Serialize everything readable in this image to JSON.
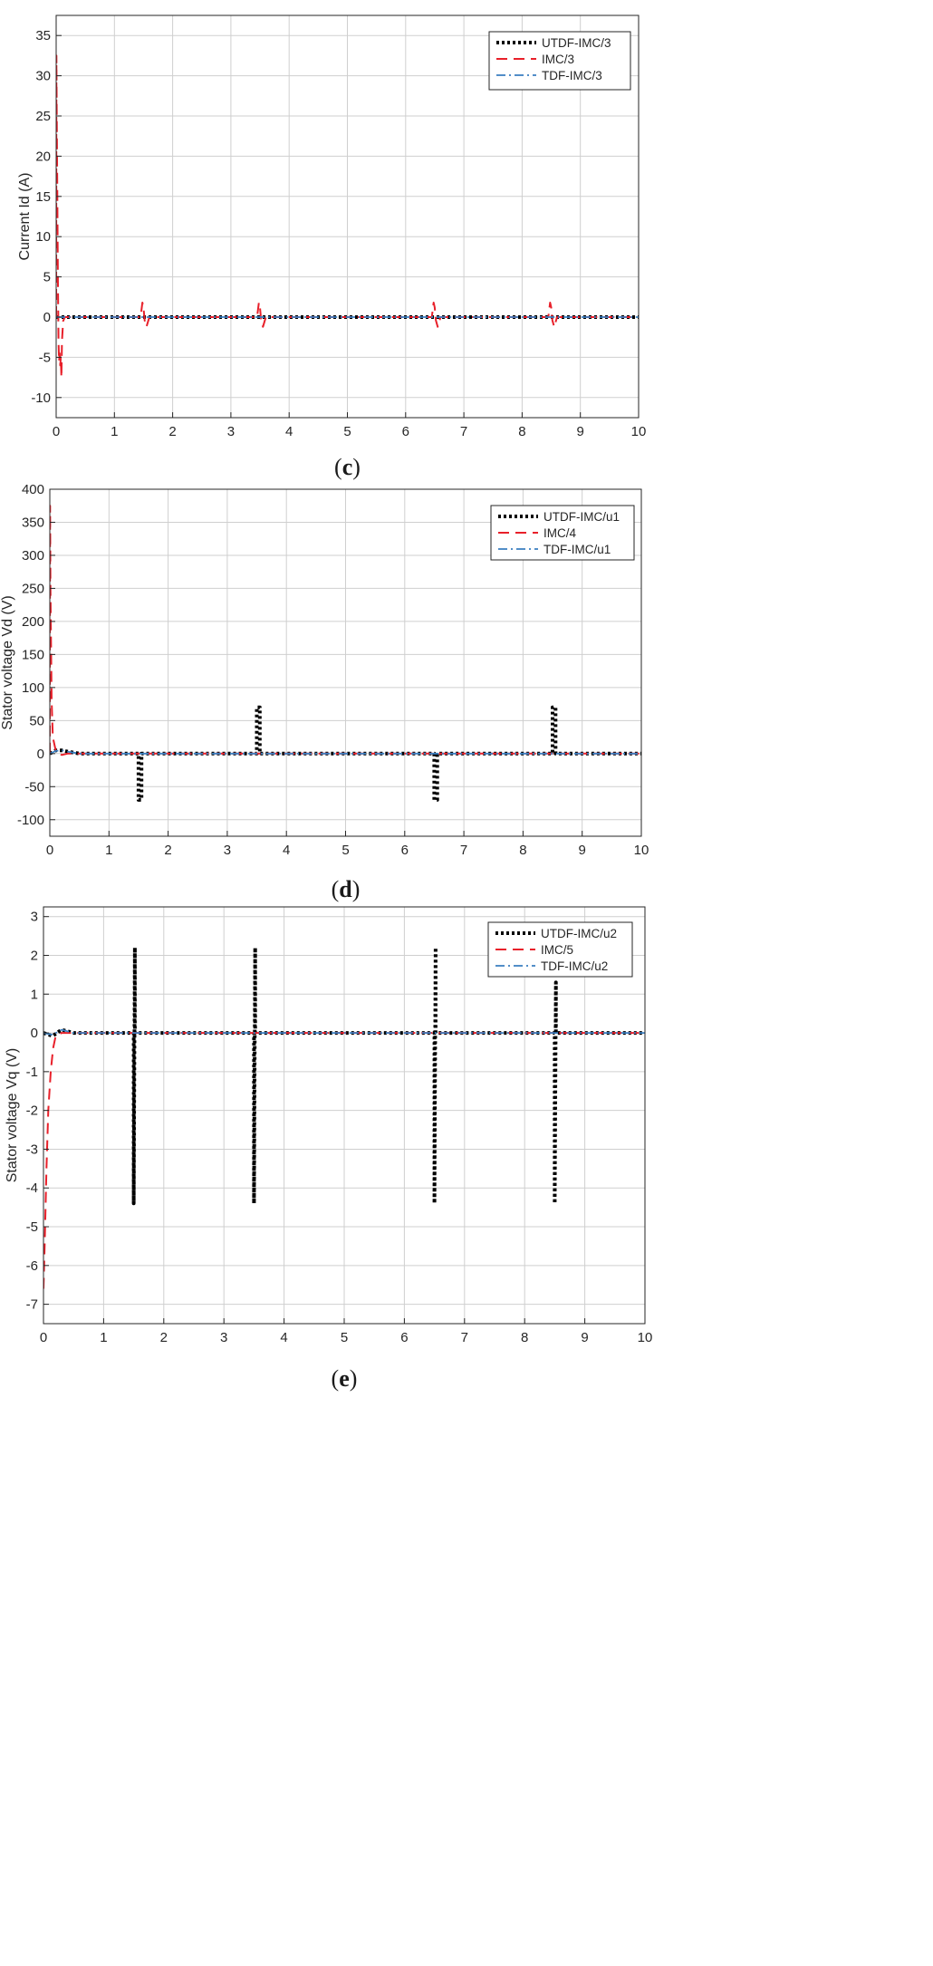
{
  "chart_data": [
    {
      "type": "line",
      "panel_label": "c",
      "xlabel": "",
      "ylabel": "Current Id (A)",
      "xlim": [
        0,
        10
      ],
      "ylim": [
        -12.5,
        37.5
      ],
      "xticks": [
        0,
        1,
        2,
        3,
        4,
        5,
        6,
        7,
        8,
        9,
        10
      ],
      "yticks": [
        35,
        30,
        25,
        20,
        15,
        10,
        5,
        0,
        -5,
        -10
      ],
      "grid": true,
      "legend": "top-right",
      "series": [
        {
          "name": "UTDF-IMC/3",
          "color": "#000000",
          "style": "dotted",
          "x": [
            0,
            10
          ],
          "y": [
            0,
            0
          ]
        },
        {
          "name": "IMC/3",
          "color": "#e8202a",
          "style": "dashed",
          "x": [
            0,
            0.005,
            0.01,
            0.02,
            0.03,
            0.04,
            0.05,
            0.06,
            0.07,
            0.08,
            0.09,
            0.1,
            0.12,
            0.15,
            1.45,
            1.48,
            1.5,
            1.52,
            1.55,
            1.6,
            3.45,
            3.48,
            3.5,
            3.52,
            3.55,
            3.6,
            6.45,
            6.48,
            6.5,
            6.52,
            6.55,
            6.6,
            8.45,
            8.48,
            8.5,
            8.52,
            8.55,
            8.6,
            10
          ],
          "y": [
            0,
            32.5,
            26,
            15,
            5,
            -3,
            -5.5,
            -4.5,
            -6,
            -5,
            -7.5,
            -3,
            -0.5,
            0,
            0,
            1.8,
            1.2,
            -0.4,
            -1.2,
            0,
            0,
            1.8,
            1.2,
            -0.4,
            -1.2,
            0,
            0,
            1.8,
            1.2,
            -0.4,
            -1.2,
            0,
            0,
            1.8,
            1.2,
            -0.4,
            -1.2,
            0,
            0
          ]
        },
        {
          "name": "TDF-IMC/3",
          "color": "#3a7fc1",
          "style": "dashdot",
          "x": [
            0,
            10
          ],
          "y": [
            0,
            0
          ]
        }
      ]
    },
    {
      "type": "line",
      "panel_label": "d",
      "xlabel": "",
      "ylabel": "Stator voltage Vd (V)",
      "xlim": [
        0,
        10
      ],
      "ylim": [
        -125,
        400
      ],
      "xticks": [
        0,
        1,
        2,
        3,
        4,
        5,
        6,
        7,
        8,
        9,
        10
      ],
      "yticks": [
        400,
        350,
        300,
        250,
        200,
        150,
        100,
        50,
        0,
        -50,
        -100
      ],
      "grid": true,
      "legend": "top-right",
      "series": [
        {
          "name": "UTDF-IMC/u1",
          "color": "#000000",
          "style": "dotted",
          "x": [
            0,
            0.1,
            0.2,
            0.3,
            0.5,
            1.5,
            1.5,
            1.55,
            1.55,
            3.5,
            3.5,
            3.55,
            3.55,
            6.5,
            6.5,
            6.55,
            6.55,
            8.5,
            8.5,
            8.55,
            8.55,
            10
          ],
          "y": [
            0,
            5,
            5,
            3,
            0,
            0,
            -70,
            -70,
            0,
            0,
            70,
            70,
            0,
            0,
            -70,
            -70,
            0,
            0,
            70,
            70,
            0,
            0
          ]
        },
        {
          "name": "IMC/4",
          "color": "#e8202a",
          "style": "dashed",
          "x": [
            0,
            0.005,
            0.01,
            0.03,
            0.05,
            0.1,
            0.2,
            0.3,
            10
          ],
          "y": [
            0,
            375,
            250,
            80,
            25,
            5,
            -2,
            0,
            0
          ]
        },
        {
          "name": "TDF-IMC/u1",
          "color": "#3a7fc1",
          "style": "dashdot",
          "x": [
            0,
            0.1,
            0.2,
            0.3,
            0.5,
            10
          ],
          "y": [
            0,
            4,
            5,
            3,
            0,
            0
          ]
        }
      ]
    },
    {
      "type": "line",
      "panel_label": "e",
      "xlabel": "",
      "ylabel": "Stator voltage Vq (V)",
      "xlim": [
        0,
        10
      ],
      "ylim": [
        -7.5,
        3.25
      ],
      "xticks": [
        0,
        1,
        2,
        3,
        4,
        5,
        6,
        7,
        8,
        9,
        10
      ],
      "yticks": [
        3,
        2,
        1,
        0,
        -1,
        -2,
        -3,
        -4,
        -5,
        -6,
        -7
      ],
      "grid": true,
      "legend": "top-right",
      "series": [
        {
          "name": "UTDF-IMC/u2",
          "color": "#000000",
          "style": "dotted",
          "x": [
            0,
            0.15,
            0.3,
            0.5,
            1.5,
            1.5,
            1.52,
            1.52,
            3.5,
            3.5,
            3.52,
            3.52,
            6.5,
            6.5,
            6.52,
            6.52,
            8.5,
            8.5,
            8.52,
            8.52,
            10
          ],
          "y": [
            0,
            -0.08,
            0.08,
            0,
            0,
            -4.4,
            2.2,
            0,
            0,
            -4.4,
            2.2,
            0,
            0,
            -4.4,
            2.2,
            0,
            0,
            -4.4,
            1.3,
            0,
            0
          ]
        },
        {
          "name": "IMC/5",
          "color": "#e8202a",
          "style": "dashed",
          "x": [
            0,
            0.02,
            0.05,
            0.08,
            0.12,
            0.16,
            0.2,
            0.3,
            10
          ],
          "y": [
            -6.6,
            -5.5,
            -3.5,
            -2,
            -1,
            -0.4,
            -0.1,
            0,
            0
          ]
        },
        {
          "name": "TDF-IMC/u2",
          "color": "#3a7fc1",
          "style": "dashdot",
          "x": [
            0,
            0.15,
            0.3,
            0.5,
            10
          ],
          "y": [
            0,
            -0.05,
            0.08,
            0,
            0
          ]
        }
      ]
    }
  ]
}
